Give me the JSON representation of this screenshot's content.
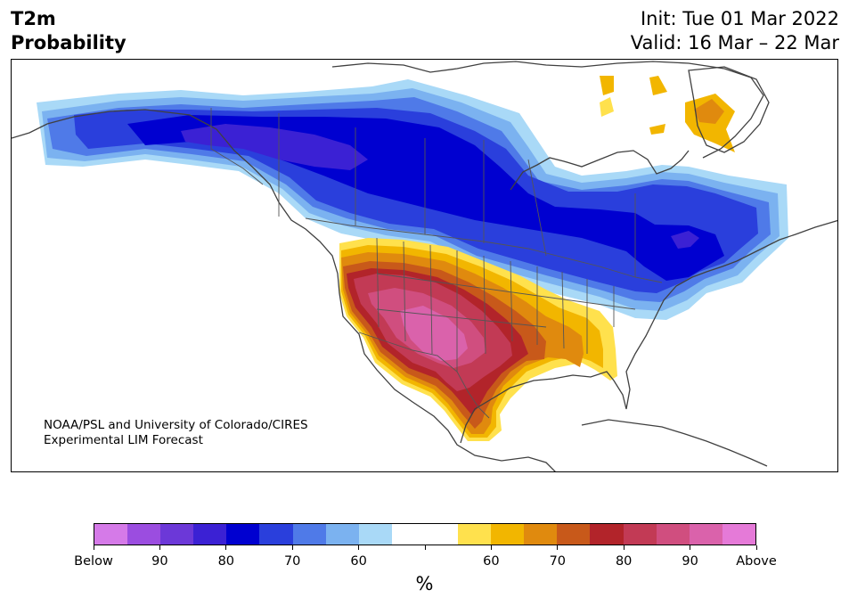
{
  "header": {
    "variable": "T2m",
    "product": "Probability",
    "init": "Init: Tue 01 Mar 2022",
    "valid": "Valid: 16 Mar – 22 Mar"
  },
  "credit": {
    "line1": "NOAA/PSL and University of Colorado/CIRES",
    "line2": "Experimental LIM Forecast"
  },
  "colorbar": {
    "unit": "%",
    "colors": [
      "#d57ae8",
      "#9b4de0",
      "#6c38d8",
      "#3b21d4",
      "#0000d0",
      "#2a3fdc",
      "#4f7ae8",
      "#7bb2f0",
      "#a9d9f7",
      "#ffffff",
      "#ffffff",
      "#ffe14d",
      "#f2b600",
      "#e08a0e",
      "#c8591a",
      "#b2242a",
      "#c23a55",
      "#d04e7f",
      "#da62ab",
      "#e57ad8"
    ],
    "tick_labels": [
      "Below",
      "90",
      "80",
      "70",
      "60",
      "",
      "60",
      "70",
      "80",
      "90",
      "Above"
    ]
  },
  "map": {
    "colors": {
      "below_90": "#3b21d4",
      "below_80": "#0000d0",
      "below_70": "#2a3fdc",
      "below_65": "#4f7ae8",
      "below_60": "#7bb2f0",
      "below_55": "#a9d9f7",
      "above_55": "#ffe14d",
      "above_60": "#f2b600",
      "above_65": "#e08a0e",
      "above_70": "#c8591a",
      "above_75": "#b2242a",
      "above_80": "#c23a55",
      "above_85": "#d04e7f",
      "above_90": "#da62ab",
      "coast": "#404040",
      "border": "#555555"
    }
  }
}
